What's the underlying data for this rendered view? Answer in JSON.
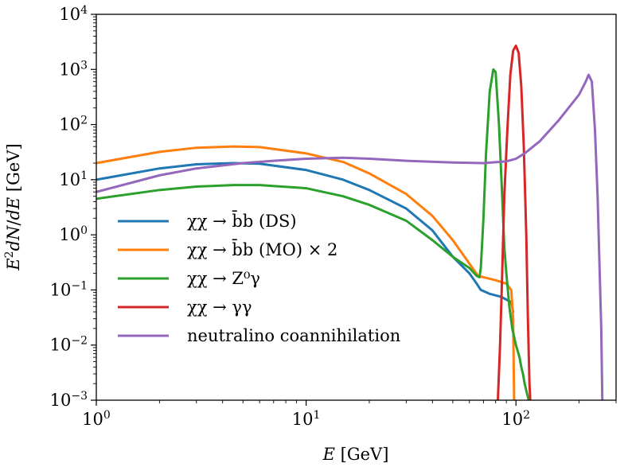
{
  "chart_data": {
    "type": "line",
    "xscale": "log",
    "yscale": "log",
    "xlim": [
      1,
      300
    ],
    "ylim": [
      0.001,
      10000
    ],
    "xlabel": "E [GeV]",
    "ylabel": "E²dN/dE [GeV]",
    "x_ticks": [
      {
        "value": 1,
        "base": "10",
        "exp": "0"
      },
      {
        "value": 10,
        "base": "10",
        "exp": "1"
      },
      {
        "value": 100,
        "base": "10",
        "exp": "2"
      }
    ],
    "y_ticks": [
      {
        "value": 0.001,
        "base": "10",
        "exp": "−3"
      },
      {
        "value": 0.01,
        "base": "10",
        "exp": "−2"
      },
      {
        "value": 0.1,
        "base": "10",
        "exp": "−1"
      },
      {
        "value": 1,
        "base": "10",
        "exp": "0"
      },
      {
        "value": 10,
        "base": "10",
        "exp": "1"
      },
      {
        "value": 100,
        "base": "10",
        "exp": "2"
      },
      {
        "value": 1000,
        "base": "10",
        "exp": "3"
      },
      {
        "value": 10000,
        "base": "10",
        "exp": "4"
      }
    ],
    "legend_position": "lower-left",
    "series": [
      {
        "name": "χχ → b̄b (DS)",
        "color": "#1f77b4",
        "points": [
          [
            1,
            10
          ],
          [
            2,
            16
          ],
          [
            3,
            19
          ],
          [
            4.5,
            20
          ],
          [
            6,
            19.5
          ],
          [
            10,
            15
          ],
          [
            15,
            10
          ],
          [
            20,
            6.5
          ],
          [
            30,
            3
          ],
          [
            40,
            1.2
          ],
          [
            50,
            0.4
          ],
          [
            60,
            0.2
          ],
          [
            65,
            0.13
          ],
          [
            68,
            0.1
          ],
          [
            75,
            0.085
          ],
          [
            85,
            0.075
          ],
          [
            95,
            0.06
          ],
          [
            97,
            0.04
          ]
        ]
      },
      {
        "name": "χχ → b̄b (MO) × 2",
        "color": "#ff7f0e",
        "points": [
          [
            1,
            20
          ],
          [
            2,
            32
          ],
          [
            3,
            38
          ],
          [
            4.5,
            40
          ],
          [
            6,
            39
          ],
          [
            10,
            30
          ],
          [
            15,
            21
          ],
          [
            20,
            13
          ],
          [
            30,
            5.5
          ],
          [
            40,
            2.2
          ],
          [
            50,
            0.8
          ],
          [
            60,
            0.3
          ],
          [
            66,
            0.18
          ],
          [
            70,
            0.17
          ],
          [
            80,
            0.15
          ],
          [
            90,
            0.13
          ],
          [
            95,
            0.1
          ],
          [
            97,
            0.03
          ],
          [
            97.5,
            0.005
          ],
          [
            98,
            0.001
          ]
        ]
      },
      {
        "name": "χχ → Z⁰γ",
        "color": "#2ca02c",
        "points": [
          [
            1,
            4.5
          ],
          [
            2,
            6.5
          ],
          [
            3,
            7.5
          ],
          [
            4.5,
            8
          ],
          [
            6,
            8
          ],
          [
            10,
            7
          ],
          [
            15,
            5
          ],
          [
            20,
            3.5
          ],
          [
            30,
            1.8
          ],
          [
            40,
            0.8
          ],
          [
            50,
            0.4
          ],
          [
            60,
            0.25
          ],
          [
            65,
            0.18
          ],
          [
            67,
            0.17
          ],
          [
            68,
            0.25
          ],
          [
            70,
            2
          ],
          [
            72,
            30
          ],
          [
            75,
            400
          ],
          [
            78,
            1000
          ],
          [
            80,
            900
          ],
          [
            83,
            100
          ],
          [
            86,
            5
          ],
          [
            88,
            0.6
          ],
          [
            90,
            0.2
          ],
          [
            93,
            0.05
          ],
          [
            96,
            0.02
          ],
          [
            100,
            0.01
          ],
          [
            104,
            0.006
          ],
          [
            106,
            0.004
          ],
          [
            108,
            0.003
          ],
          [
            110,
            0.002
          ],
          [
            112,
            0.0015
          ],
          [
            115,
            0.001
          ]
        ]
      },
      {
        "name": "χχ → γγ",
        "color": "#d62728",
        "points": [
          [
            82,
            0.001
          ],
          [
            84,
            0.01
          ],
          [
            86,
            0.2
          ],
          [
            88,
            5
          ],
          [
            91,
            80
          ],
          [
            94,
            800
          ],
          [
            97,
            2200
          ],
          [
            100,
            2700
          ],
          [
            103,
            2000
          ],
          [
            106,
            500
          ],
          [
            109,
            40
          ],
          [
            112,
            1
          ],
          [
            114,
            0.03
          ],
          [
            116,
            0.002
          ],
          [
            117,
            0.001
          ]
        ]
      },
      {
        "name": "neutralino coannihilation",
        "color": "#9467bd",
        "points": [
          [
            1,
            6
          ],
          [
            2,
            12
          ],
          [
            3,
            16
          ],
          [
            5,
            20
          ],
          [
            7,
            22
          ],
          [
            10,
            24
          ],
          [
            15,
            25
          ],
          [
            20,
            24
          ],
          [
            30,
            22
          ],
          [
            50,
            20.5
          ],
          [
            70,
            20
          ],
          [
            90,
            21.5
          ],
          [
            100,
            24
          ],
          [
            110,
            30
          ],
          [
            130,
            50
          ],
          [
            160,
            120
          ],
          [
            200,
            350
          ],
          [
            215,
            600
          ],
          [
            222,
            800
          ],
          [
            230,
            600
          ],
          [
            238,
            80
          ],
          [
            245,
            5
          ],
          [
            250,
            0.3
          ],
          [
            255,
            0.02
          ],
          [
            258,
            0.001
          ]
        ]
      }
    ]
  }
}
